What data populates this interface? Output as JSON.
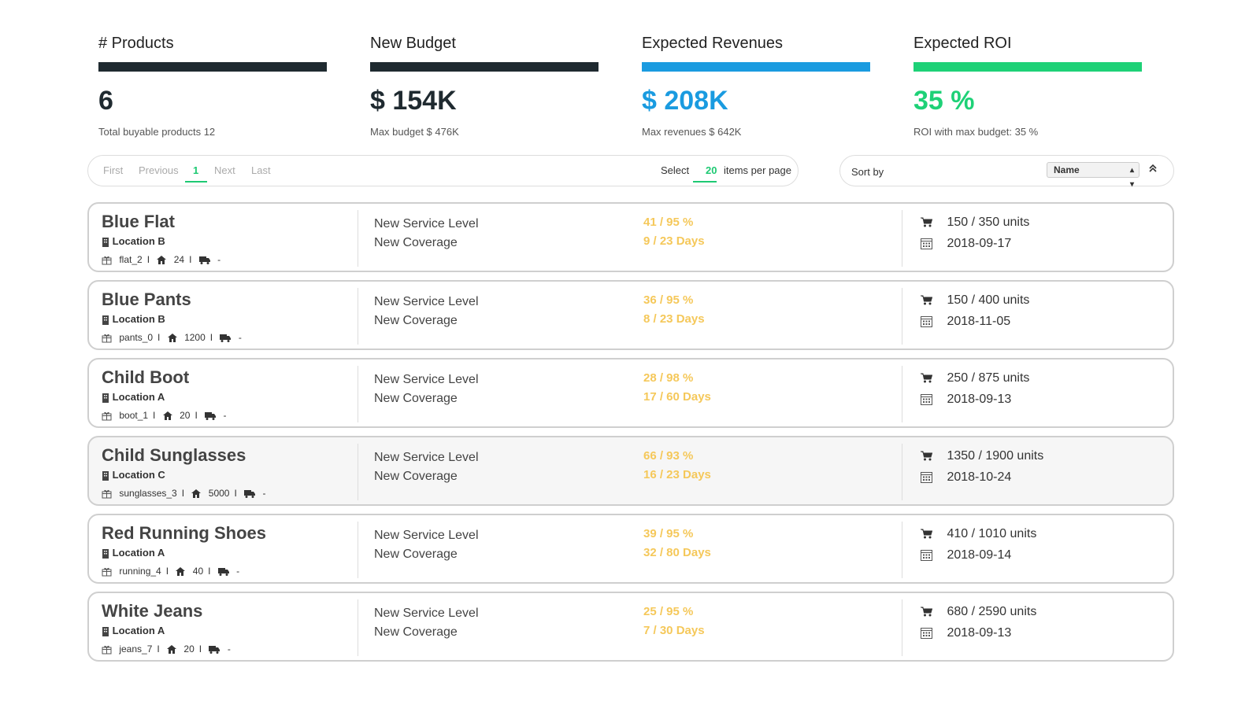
{
  "kpis": [
    {
      "title": "# Products",
      "value": "6",
      "sub": "Total buyable products 12",
      "bar_color": "#1f2a30",
      "value_color": "#1f2a30"
    },
    {
      "title": "New Budget",
      "value": "$ 154K",
      "sub": "Max budget $ 476K",
      "bar_color": "#1f2a30",
      "value_color": "#1f2a30"
    },
    {
      "title": "Expected Revenues",
      "value": "$ 208K",
      "sub": "Max revenues $ 642K",
      "bar_color": "#1a9be0",
      "value_color": "#1a9be0"
    },
    {
      "title": "Expected ROI",
      "value": "35 %",
      "sub": "ROI with max budget: 35 %",
      "bar_color": "#1ed177",
      "value_color": "#1ed177"
    }
  ],
  "pager": {
    "first": "First",
    "previous": "Previous",
    "current": "1",
    "next": "Next",
    "last": "Last",
    "select_label": "Select",
    "per_page": "20",
    "per_page_tail": "items per page"
  },
  "sort": {
    "label": "Sort by",
    "selected": "Name",
    "direction_icon": "chevron-up-icon"
  },
  "row_labels": {
    "service_level": "New Service Level",
    "coverage": "New Coverage"
  },
  "products": [
    {
      "name": "Blue Flat",
      "location": "Location B",
      "sku": "flat_2",
      "qty": "24",
      "truck": "-",
      "service": "41 / 95 %",
      "coverage": "9 / 23 Days",
      "units": "150 / 350 units",
      "date": "2018-09-17",
      "highlighted": false
    },
    {
      "name": "Blue Pants",
      "location": "Location B",
      "sku": "pants_0",
      "qty": "1200",
      "truck": "-",
      "service": "36 / 95 %",
      "coverage": "8 / 23 Days",
      "units": "150 / 400 units",
      "date": "2018-11-05",
      "highlighted": false
    },
    {
      "name": "Child Boot",
      "location": "Location A",
      "sku": "boot_1",
      "qty": "20",
      "truck": "-",
      "service": "28 / 98 %",
      "coverage": "17 / 60 Days",
      "units": "250 / 875 units",
      "date": "2018-09-13",
      "highlighted": false
    },
    {
      "name": "Child Sunglasses",
      "location": "Location C",
      "sku": "sunglasses_3",
      "qty": "5000",
      "truck": "-",
      "service": "66 / 93 %",
      "coverage": "16 / 23 Days",
      "units": "1350 / 1900 units",
      "date": "2018-10-24",
      "highlighted": true
    },
    {
      "name": "Red Running Shoes",
      "location": "Location A",
      "sku": "running_4",
      "qty": "40",
      "truck": "-",
      "service": "39 / 95 %",
      "coverage": "32 / 80 Days",
      "units": "410 / 1010 units",
      "date": "2018-09-14",
      "highlighted": false
    },
    {
      "name": "White Jeans",
      "location": "Location A",
      "sku": "jeans_7",
      "qty": "20",
      "truck": "-",
      "service": "25 / 95 %",
      "coverage": "7 / 30 Days",
      "units": "680 / 2590 units",
      "date": "2018-09-13",
      "highlighted": false
    }
  ]
}
